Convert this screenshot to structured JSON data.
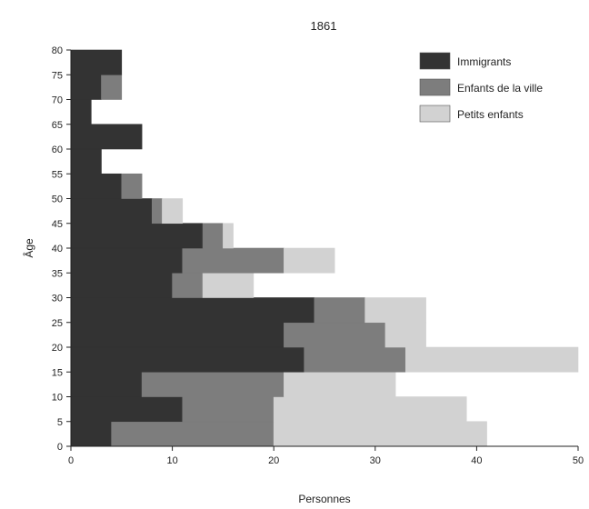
{
  "chart_data": {
    "type": "bar",
    "orientation": "horizontal",
    "stacked": true,
    "title": "1861",
    "xlabel": "Personnes",
    "ylabel": "Âge",
    "xlim": [
      0,
      50
    ],
    "ylim": [
      0,
      80
    ],
    "bin_width": 5,
    "x_ticks": [
      0,
      10,
      20,
      30,
      40,
      50
    ],
    "y_ticks": [
      0,
      5,
      10,
      15,
      20,
      25,
      30,
      35,
      40,
      45,
      50,
      55,
      60,
      65,
      70,
      75,
      80
    ],
    "categories": [
      0,
      5,
      10,
      15,
      20,
      25,
      30,
      35,
      40,
      45,
      50,
      55,
      60,
      65,
      70,
      75
    ],
    "series": [
      {
        "name": "Immigrants",
        "color": "#333333",
        "values": [
          4,
          11,
          7,
          23,
          21,
          24,
          10,
          11,
          13,
          8,
          5,
          3,
          7,
          2,
          3,
          5
        ]
      },
      {
        "name": "Enfants de la ville",
        "color": "#7d7d7d",
        "values": [
          16,
          9,
          14,
          10,
          10,
          5,
          3,
          10,
          2,
          1,
          2,
          0,
          0,
          0,
          2,
          0
        ]
      },
      {
        "name": "Petits enfants",
        "color": "#d2d2d2",
        "values": [
          21,
          19,
          11,
          17,
          4,
          6,
          5,
          5,
          1,
          2,
          0,
          0,
          0,
          0,
          0,
          0
        ]
      }
    ],
    "grid": false,
    "legend_position": "top-right"
  }
}
